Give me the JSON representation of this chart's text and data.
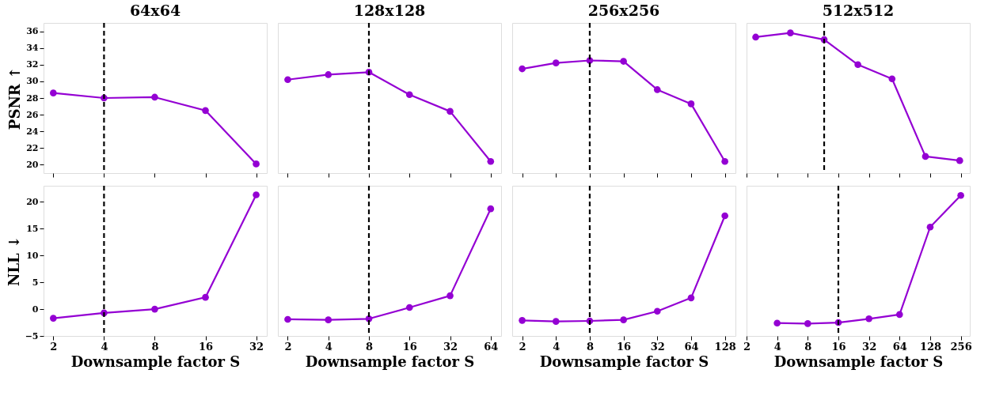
{
  "chart_data": [
    {
      "type": "line",
      "title": "64x64",
      "ylabel": "PSNR ↑",
      "log": "x",
      "grid": false,
      "marker": "circle",
      "line_style": "solid",
      "tick_labels": "y",
      "xlim": [
        1.75,
        37
      ],
      "xticks": [
        2,
        4,
        8,
        16,
        32
      ],
      "ylim": [
        19,
        37
      ],
      "yticks": [
        20,
        22,
        24,
        26,
        28,
        30,
        32,
        34,
        36
      ],
      "series": [
        {
          "color": "#9400d3",
          "x": [
            2,
            4,
            8,
            16,
            32
          ],
          "values": [
            28.6,
            28.0,
            28.1,
            26.5,
            20.1
          ]
        }
      ],
      "ref_lines": [
        {
          "axis": "x",
          "value": 4,
          "color": "#000000",
          "line_style": "dashed"
        }
      ]
    },
    {
      "type": "line",
      "title": "128x128",
      "log": "x",
      "grid": false,
      "marker": "circle",
      "line_style": "solid",
      "tick_labels": false,
      "xlim": [
        1.69,
        76.5
      ],
      "xticks": [
        2,
        4,
        8,
        16,
        32,
        64
      ],
      "ylim": [
        19,
        37
      ],
      "series": [
        {
          "color": "#9400d3",
          "x": [
            2,
            4,
            8,
            16,
            32,
            64
          ],
          "values": [
            30.2,
            30.8,
            31.1,
            28.4,
            26.4,
            20.4
          ]
        }
      ],
      "ref_lines": [
        {
          "axis": "x",
          "value": 8,
          "color": "#000000",
          "line_style": "dashed"
        }
      ]
    },
    {
      "type": "line",
      "title": "256x256",
      "log": "x",
      "grid": false,
      "marker": "circle",
      "line_style": "solid",
      "tick_labels": false,
      "xlim": [
        1.63,
        159
      ],
      "xticks": [
        2,
        4,
        8,
        16,
        32,
        64,
        128
      ],
      "ylim": [
        19,
        37
      ],
      "series": [
        {
          "color": "#9400d3",
          "x": [
            2,
            4,
            8,
            16,
            32,
            64,
            128
          ],
          "values": [
            31.5,
            32.2,
            32.5,
            32.4,
            29.0,
            27.3,
            20.4
          ]
        }
      ],
      "ref_lines": [
        {
          "axis": "x",
          "value": 8,
          "color": "#000000",
          "line_style": "dashed"
        }
      ]
    },
    {
      "type": "line",
      "title": "512x512",
      "log": "x",
      "grid": false,
      "marker": "circle",
      "line_style": "solid",
      "tick_labels": false,
      "xlim": [
        2,
        314
      ],
      "xticks": [
        2,
        4,
        8,
        16,
        32,
        64,
        128,
        256
      ],
      "ylim": [
        19,
        37
      ],
      "series": [
        {
          "color": "#9400d3",
          "x": [
            2.46,
            5.4,
            11.6,
            24.9,
            54,
            115,
            250
          ],
          "values": [
            35.3,
            35.8,
            35.0,
            32.0,
            30.3,
            21.0,
            20.5
          ]
        }
      ],
      "ref_lines": [
        {
          "axis": "x",
          "value": 11.6,
          "color": "#000000",
          "line_style": "dashed"
        }
      ]
    },
    {
      "type": "line",
      "xlabel": "Downsample factor S",
      "ylabel": "NLL ↓",
      "log": "x",
      "grid": false,
      "marker": "circle",
      "line_style": "solid",
      "xlim": [
        1.75,
        37
      ],
      "xticks": [
        2,
        4,
        8,
        16,
        32
      ],
      "ylim": [
        -5,
        23
      ],
      "yticks": [
        -5,
        0,
        5,
        10,
        15,
        20
      ],
      "series": [
        {
          "color": "#9400d3",
          "x": [
            2,
            4,
            8,
            16,
            32
          ],
          "values": [
            -1.7,
            -0.7,
            0.0,
            2.2,
            21.3
          ]
        }
      ],
      "ref_lines": [
        {
          "axis": "x",
          "value": 4,
          "color": "#000000",
          "line_style": "dashed"
        }
      ]
    },
    {
      "type": "line",
      "xlabel": "Downsample factor S",
      "log": "x",
      "grid": false,
      "marker": "circle",
      "line_style": "solid",
      "tick_labels": "x",
      "xlim": [
        1.69,
        76.5
      ],
      "xticks": [
        2,
        4,
        8,
        16,
        32,
        64
      ],
      "ylim": [
        -5,
        23
      ],
      "series": [
        {
          "color": "#9400d3",
          "x": [
            2,
            4,
            8,
            16,
            32,
            64
          ],
          "values": [
            -1.9,
            -2.0,
            -1.8,
            0.3,
            2.5,
            18.7
          ]
        }
      ],
      "ref_lines": [
        {
          "axis": "x",
          "value": 8,
          "color": "#000000",
          "line_style": "dashed"
        }
      ]
    },
    {
      "type": "line",
      "xlabel": "Downsample factor S",
      "log": "x",
      "grid": false,
      "marker": "circle",
      "line_style": "solid",
      "tick_labels": "x",
      "xlim": [
        1.63,
        159
      ],
      "xticks": [
        2,
        4,
        8,
        16,
        32,
        64,
        128
      ],
      "ylim": [
        -5,
        23
      ],
      "series": [
        {
          "color": "#9400d3",
          "x": [
            2,
            4,
            8,
            16,
            32,
            64,
            128
          ],
          "values": [
            -2.1,
            -2.3,
            -2.2,
            -2.0,
            -0.4,
            2.1,
            17.4
          ]
        }
      ],
      "ref_lines": [
        {
          "axis": "x",
          "value": 8,
          "color": "#000000",
          "line_style": "dashed"
        }
      ]
    },
    {
      "type": "line",
      "xlabel": "Downsample factor S",
      "log": "x",
      "grid": false,
      "marker": "circle",
      "line_style": "solid",
      "tick_labels": "x",
      "xlim": [
        2,
        314
      ],
      "xticks": [
        2,
        4,
        8,
        16,
        32,
        64,
        128,
        256
      ],
      "ylim": [
        -5,
        23
      ],
      "series": [
        {
          "color": "#9400d3",
          "x": [
            4,
            8,
            16,
            32,
            64,
            128,
            256
          ],
          "values": [
            -2.6,
            -2.7,
            -2.5,
            -1.8,
            -1.0,
            15.3,
            21.2
          ]
        }
      ],
      "ref_lines": [
        {
          "axis": "x",
          "value": 16,
          "color": "#000000",
          "line_style": "dashed"
        }
      ]
    }
  ]
}
